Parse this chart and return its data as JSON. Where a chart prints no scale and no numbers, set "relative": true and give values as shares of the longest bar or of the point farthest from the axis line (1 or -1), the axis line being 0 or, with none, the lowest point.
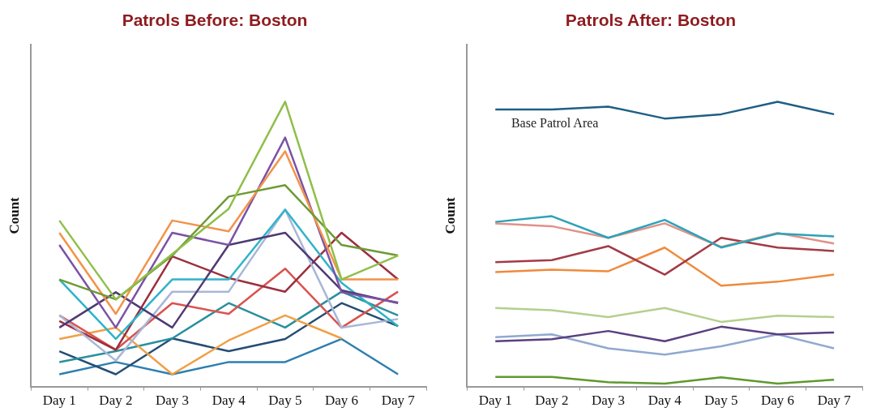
{
  "chart_data": [
    {
      "type": "line",
      "title": "Patrols Before: Boston",
      "ylabel": "Count",
      "categories": [
        "Day 1",
        "Day 2",
        "Day 3",
        "Day 4",
        "Day 5",
        "Day 6",
        "Day 7"
      ],
      "relative": true,
      "legend": false,
      "marker": "none",
      "line_style": "solid",
      "series": [
        {
          "color": "#8fbf4a",
          "values": [
            0.583,
            0.306,
            0.465,
            0.624,
            1.0,
            0.376,
            0.46
          ]
        },
        {
          "color": "#6e9a35",
          "values": [
            0.376,
            0.306,
            0.46,
            0.667,
            0.707,
            0.497,
            0.46
          ]
        },
        {
          "color": "#f2934a",
          "values": [
            0.54,
            0.255,
            0.583,
            0.545,
            0.826,
            0.376,
            0.376
          ]
        },
        {
          "color": "#7b52a6",
          "values": [
            0.497,
            0.207,
            0.54,
            0.497,
            0.874,
            0.331,
            0.295
          ]
        },
        {
          "color": "#4f3a73",
          "values": [
            0.207,
            0.331,
            0.207,
            0.497,
            0.54,
            0.338,
            0.293
          ]
        },
        {
          "color": "#2fb3c9",
          "values": [
            0.376,
            0.167,
            0.376,
            0.376,
            0.621,
            0.364,
            0.212
          ]
        },
        {
          "color": "#a8b7d6",
          "values": [
            0.25,
            0.091,
            0.333,
            0.333,
            0.621,
            0.207,
            0.237
          ]
        },
        {
          "color": "#9b2f3e",
          "values": [
            0.23,
            0.129,
            0.457,
            0.381,
            0.333,
            0.54,
            0.376
          ]
        },
        {
          "color": "#d9534f",
          "values": [
            0.25,
            0.129,
            0.293,
            0.255,
            0.414,
            0.207,
            0.333
          ]
        },
        {
          "color": "#f0a045",
          "values": [
            0.167,
            0.207,
            0.043,
            0.162,
            0.25,
            0.169,
            null
          ]
        },
        {
          "color": "#2a8f9e",
          "values": [
            0.086,
            0.124,
            0.169,
            0.293,
            0.207,
            0.333,
            0.25
          ]
        },
        {
          "color": "#254d74",
          "values": [
            0.124,
            0.043,
            0.169,
            0.124,
            0.167,
            0.293,
            0.212
          ]
        },
        {
          "color": "#2e7fb0",
          "values": [
            0.043,
            0.086,
            0.043,
            0.086,
            0.086,
            0.167,
            0.043
          ]
        }
      ]
    },
    {
      "type": "line",
      "title": "Patrols After: Boston",
      "ylabel": "Count",
      "categories": [
        "Day 1",
        "Day 2",
        "Day 3",
        "Day 4",
        "Day 5",
        "Day 6",
        "Day 7"
      ],
      "relative": true,
      "legend": false,
      "marker": "none",
      "line_style": "solid",
      "series": [
        {
          "name": "Base Patrol Area",
          "color": "#1f5f85",
          "values": [
            0.973,
            0.973,
            0.983,
            0.941,
            0.956,
            1.0,
            0.956
          ]
        },
        {
          "color": "#2ba3b8",
          "values": [
            0.578,
            0.598,
            0.522,
            0.585,
            0.488,
            0.537,
            0.527
          ]
        },
        {
          "color": "#e0928a",
          "values": [
            0.573,
            0.563,
            0.522,
            0.573,
            0.49,
            0.539,
            0.502
          ]
        },
        {
          "color": "#a33a45",
          "values": [
            0.437,
            0.444,
            0.493,
            0.393,
            0.522,
            0.488,
            0.476
          ]
        },
        {
          "color": "#f08a3c",
          "values": [
            0.402,
            0.41,
            0.405,
            0.488,
            0.354,
            0.368,
            0.393
          ]
        },
        {
          "color": "#b5cf8e",
          "values": [
            0.276,
            0.268,
            0.244,
            0.276,
            0.227,
            0.249,
            0.244
          ]
        },
        {
          "color": "#5b3f80",
          "values": [
            0.159,
            0.166,
            0.195,
            0.159,
            0.21,
            0.183,
            0.19
          ]
        },
        {
          "color": "#8fa9cf",
          "values": [
            0.173,
            0.183,
            0.134,
            0.112,
            0.141,
            0.183,
            0.134
          ]
        },
        {
          "color": "#5e9a2e",
          "values": [
            0.034,
            0.034,
            0.015,
            0.01,
            0.032,
            0.01,
            0.024
          ]
        }
      ]
    }
  ]
}
